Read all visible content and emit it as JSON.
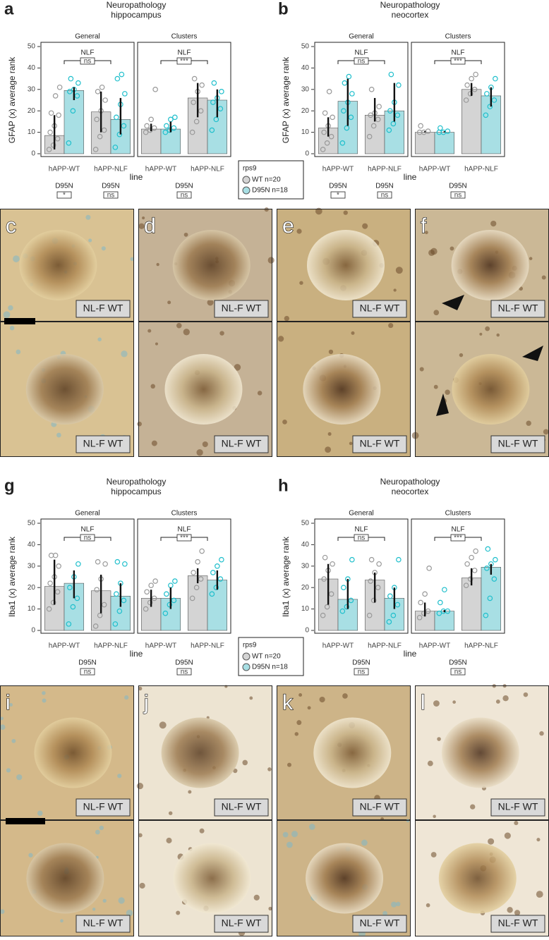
{
  "chart_data": [
    {
      "type": "bar",
      "letter": "a",
      "title": [
        "Neuropathology",
        "hippocampus"
      ],
      "ylabel": "GFAP (x) average rank",
      "xlabel": "line",
      "ylim": [
        0,
        50
      ],
      "yticks": [
        0,
        10,
        20,
        30,
        40,
        50
      ],
      "facets": [
        {
          "title": "General",
          "categories": [
            "hAPP-WT",
            "hAPP-NLF"
          ],
          "series": [
            {
              "color": "#d4d4d4",
              "values": [
                8.5,
                19.5
              ],
              "error_low": [
                2,
                10
              ],
              "error_high": [
                18,
                29
              ],
              "points": [
                [
                  2,
                  4,
                  7,
                  10,
                  13,
                  18,
                  19,
                  27,
                  31
                ],
                [
                  2,
                  8,
                  11,
                  16,
                  20,
                  25,
                  29,
                  31
                ]
              ]
            },
            {
              "color": "#a8dfe4",
              "values": [
                29.5,
                16
              ],
              "error_low": [
                25,
                9
              ],
              "error_high": [
                31,
                26
              ],
              "points": [
                [
                  5,
                  20,
                  27,
                  29,
                  30,
                  33,
                  35
                ],
                [
                  3,
                  9,
                  13,
                  17,
                  23,
                  28,
                  35,
                  37
                ]
              ]
            }
          ],
          "bracket": {
            "label": "NLF",
            "test": "ns"
          },
          "annotations": [
            {
              "label": "D95N",
              "test": "*"
            },
            {
              "label": "D95N",
              "test": "ns"
            }
          ]
        },
        {
          "title": "Clusters",
          "categories": [
            "hAPP-WT",
            "hAPP-NLF"
          ],
          "series": [
            {
              "color": "#d4d4d4",
              "values": [
                11.5,
                26
              ],
              "error_low": [
                10.5,
                17
              ],
              "error_high": [
                14,
                33
              ],
              "points": [
                [
                  10,
                  11,
                  12,
                  13,
                  16,
                  30
                ],
                [
                  10,
                  15,
                  20,
                  24,
                  29,
                  32,
                  35
                ]
              ]
            },
            {
              "color": "#a8dfe4",
              "values": [
                11.5,
                25
              ],
              "error_low": [
                10,
                17
              ],
              "error_high": [
                15,
                30
              ],
              "points": [
                [
                  10,
                  11,
                  12,
                  13,
                  16,
                  17
                ],
                [
                  11,
                  16,
                  21,
                  24,
                  26,
                  29,
                  33
                ]
              ]
            }
          ],
          "bracket": {
            "label": "NLF",
            "test": "***"
          },
          "annotations": [
            {
              "label": "D95N",
              "test": "ns"
            }
          ]
        }
      ]
    },
    {
      "type": "bar",
      "letter": "b",
      "title": [
        "Neuropathology",
        "neocortex"
      ],
      "ylabel": "GFAP (x) average rank",
      "xlabel": "line",
      "ylim": [
        0,
        50
      ],
      "yticks": [
        0,
        10,
        20,
        30,
        40,
        50
      ],
      "facets": [
        {
          "title": "General",
          "categories": [
            "hAPP-WT",
            "hAPP-NLF"
          ],
          "series": [
            {
              "color": "#d4d4d4",
              "values": [
                12,
                18
              ],
              "error_low": [
                8,
                15
              ],
              "error_high": [
                17,
                26
              ],
              "points": [
                [
                  2,
                  5,
                  8,
                  10,
                  13,
                  17,
                  19,
                  29
                ],
                [
                  8,
                  13,
                  16,
                  18,
                  19,
                  22,
                  30
                ]
              ]
            },
            {
              "color": "#a8dfe4",
              "values": [
                24.5,
                20
              ],
              "error_low": [
                13,
                15
              ],
              "error_high": [
                35,
                33
              ],
              "points": [
                [
                  5,
                  12,
                  17,
                  20,
                  24,
                  28,
                  33,
                  36
                ],
                [
                  11,
                  14,
                  18,
                  20,
                  24,
                  32,
                  37
                ]
              ]
            }
          ],
          "bracket": {
            "label": "NLF",
            "test": "ns"
          },
          "annotations": [
            {
              "label": "D95N",
              "test": "*"
            },
            {
              "label": "D95N",
              "test": "ns"
            }
          ]
        },
        {
          "title": "Clusters",
          "categories": [
            "hAPP-WT",
            "hAPP-NLF"
          ],
          "series": [
            {
              "color": "#d4d4d4",
              "values": [
                10,
                30
              ],
              "error_low": [
                10,
                27
              ],
              "error_high": [
                10.5,
                33
              ],
              "points": [
                [
                  10,
                  10,
                  10.5,
                  13
                ],
                [
                  25,
                  28,
                  30,
                  32,
                  35,
                  37
                ]
              ]
            },
            {
              "color": "#a8dfe4",
              "values": [
                10,
                27
              ],
              "error_low": [
                10,
                22
              ],
              "error_high": [
                10.5,
                31
              ],
              "points": [
                [
                  10,
                  10,
                  10.5,
                  12
                ],
                [
                  18,
                  22,
                  25,
                  28,
                  31,
                  35
                ]
              ]
            }
          ],
          "bracket": {
            "label": "NLF",
            "test": "***"
          },
          "annotations": [
            {
              "label": "D95N",
              "test": "ns"
            }
          ]
        }
      ]
    },
    {
      "type": "bar",
      "letter": "g",
      "title": [
        "Neuropathology",
        "hippocampus"
      ],
      "ylabel": "Iba1 (x) average rank",
      "xlabel": "line",
      "ylim": [
        0,
        50
      ],
      "yticks": [
        0,
        10,
        20,
        30,
        40,
        50
      ],
      "facets": [
        {
          "title": "General",
          "categories": [
            "hAPP-WT",
            "hAPP-NLF"
          ],
          "series": [
            {
              "color": "#d4d4d4",
              "values": [
                20.5,
                18.5
              ],
              "error_low": [
                12,
                8
              ],
              "error_high": [
                33,
                26
              ],
              "points": [
                [
                  10,
                  13,
                  18,
                  22,
                  25,
                  30,
                  35,
                  35
                ],
                [
                  2,
                  7,
                  12,
                  19,
                  24,
                  31,
                  32
                ]
              ]
            },
            {
              "color": "#a8dfe4",
              "values": [
                22,
                16
              ],
              "error_low": [
                15,
                11
              ],
              "error_high": [
                28,
                22
              ],
              "points": [
                [
                  3,
                  11,
                  15,
                  20,
                  25,
                  31
                ],
                [
                  3,
                  9,
                  14,
                  17,
                  22,
                  31,
                  32
                ]
              ]
            }
          ],
          "bracket": {
            "label": "NLF",
            "test": "ns"
          },
          "annotations": [
            {
              "label": "D95N",
              "test": "ns"
            }
          ]
        },
        {
          "title": "Clusters",
          "categories": [
            "hAPP-WT",
            "hAPP-NLF"
          ],
          "series": [
            {
              "color": "#d4d4d4",
              "values": [
                15,
                25.5
              ],
              "error_low": [
                11,
                22
              ],
              "error_high": [
                19,
                29
              ],
              "points": [
                [
                  10,
                  13,
                  15,
                  18,
                  21,
                  23
                ],
                [
                  15,
                  20,
                  24,
                  27,
                  32,
                  37
                ]
              ]
            },
            {
              "color": "#a8dfe4",
              "values": [
                15,
                23.5
              ],
              "error_low": [
                10,
                19
              ],
              "error_high": [
                20,
                28
              ],
              "points": [
                [
                  8,
                  12,
                  14,
                  17,
                  21,
                  23
                ],
                [
                  17,
                  20,
                  24,
                  27,
                  30,
                  33
                ]
              ]
            }
          ],
          "bracket": {
            "label": "NLF",
            "test": "***"
          },
          "annotations": [
            {
              "label": "D95N",
              "test": "ns"
            }
          ]
        }
      ]
    },
    {
      "type": "bar",
      "letter": "h",
      "title": [
        "Neuropathology",
        "neocortex"
      ],
      "ylabel": "Iba1 (x) average rank",
      "xlabel": "line",
      "ylim": [
        0,
        50
      ],
      "yticks": [
        0,
        10,
        20,
        30,
        40,
        50
      ],
      "facets": [
        {
          "title": "General",
          "categories": [
            "hAPP-WT",
            "hAPP-NLF"
          ],
          "series": [
            {
              "color": "#d4d4d4",
              "values": [
                24,
                23.5
              ],
              "error_low": [
                12,
                13
              ],
              "error_high": [
                31,
                27
              ],
              "points": [
                [
                  7,
                  11,
                  17,
                  24,
                  28,
                  31,
                  34
                ],
                [
                  7,
                  14,
                  20,
                  23,
                  27,
                  31,
                  33
                ]
              ]
            },
            {
              "color": "#a8dfe4",
              "values": [
                14.5,
                15
              ],
              "error_low": [
                10,
                10
              ],
              "error_high": [
                24,
                20
              ],
              "points": [
                [
                  9,
                  11,
                  14,
                  20,
                  24,
                  33
                ],
                [
                  4,
                  7,
                  12,
                  16,
                  20,
                  33
                ]
              ]
            }
          ],
          "bracket": {
            "label": "NLF",
            "test": "ns"
          },
          "annotations": [
            {
              "label": "D95N",
              "test": "ns"
            }
          ]
        },
        {
          "title": "Clusters",
          "categories": [
            "hAPP-WT",
            "hAPP-NLF"
          ],
          "series": [
            {
              "color": "#d4d4d4",
              "values": [
                9,
                24.5
              ],
              "error_low": [
                6.5,
                21
              ],
              "error_high": [
                13,
                29
              ],
              "points": [
                [
                  6,
                  8,
                  9,
                  13,
                  17,
                  29
                ],
                [
                  21,
                  24,
                  28,
                  31,
                  34,
                  37
                ]
              ]
            },
            {
              "color": "#a8dfe4",
              "values": [
                9,
                29.5
              ],
              "error_low": [
                8.5,
                26
              ],
              "error_high": [
                9.5,
                31
              ],
              "points": [
                [
                  8,
                  9,
                  9,
                  13,
                  19
                ],
                [
                  7,
                  15,
                  24,
                  29,
                  31,
                  33,
                  38
                ]
              ]
            }
          ],
          "bracket": {
            "label": "NLF",
            "test": "***"
          },
          "annotations": [
            {
              "label": "D95N",
              "test": "ns"
            }
          ]
        }
      ]
    }
  ],
  "legend": {
    "title": "rps9",
    "items": [
      "WT n=20",
      "D95N n=18"
    ]
  },
  "micrographs": [
    {
      "letter": "c",
      "top": "NL-F WT",
      "bottom": "NL-F WT"
    },
    {
      "letter": "d",
      "top": "NL-F WT",
      "bottom": "NL-F WT"
    },
    {
      "letter": "e",
      "top": "NL-F WT",
      "bottom": "NL-F WT"
    },
    {
      "letter": "f",
      "top": "NL-F WT",
      "bottom": "NL-F WT"
    },
    {
      "letter": "i",
      "top": "NL-F WT",
      "bottom": "NL-F WT"
    },
    {
      "letter": "j",
      "top": "NL-F WT",
      "bottom": "NL-F WT"
    },
    {
      "letter": "k",
      "top": "NL-F WT",
      "bottom": "NL-F WT"
    },
    {
      "letter": "l",
      "top": "NL-F WT",
      "bottom": "NL-F WT"
    }
  ]
}
